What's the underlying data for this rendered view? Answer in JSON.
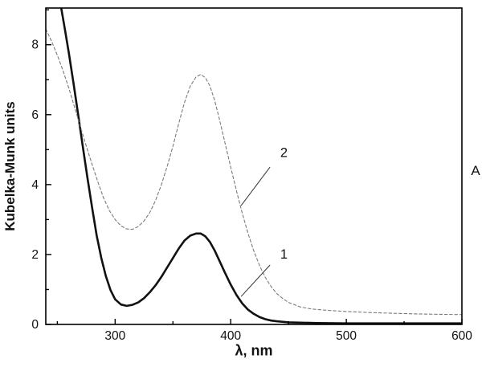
{
  "figure": {
    "background": "#ffffff",
    "axis_color": "#000000"
  },
  "chart_data": {
    "type": "line",
    "title": "",
    "xlabel": "λ, nm",
    "ylabel": "Kubelka-Munk units",
    "ylabel_right": "A",
    "xlim": [
      240,
      600
    ],
    "ylim": [
      0,
      9.05
    ],
    "xticks": [
      300,
      400,
      500,
      600
    ],
    "xticks_minor": [
      250,
      350,
      450,
      550
    ],
    "yticks": [
      0,
      2,
      4,
      6,
      8
    ],
    "yticks_minor": [
      1,
      3,
      5,
      7,
      9
    ],
    "grid": false,
    "legend_position": "none",
    "series": [
      {
        "name": "1",
        "line_style": "solid",
        "color": "#111111",
        "width": 2.6,
        "x": [
          252,
          256,
          260,
          264,
          268,
          272,
          276,
          280,
          284,
          288,
          292,
          296,
          300,
          305,
          310,
          315,
          320,
          325,
          330,
          335,
          340,
          345,
          350,
          355,
          360,
          365,
          370,
          374,
          378,
          382,
          386,
          390,
          395,
          400,
          405,
          410,
          415,
          420,
          425,
          430,
          435,
          440,
          450,
          460,
          475,
          500,
          525,
          550,
          575,
          600
        ],
        "y": [
          9.3,
          8.55,
          7.75,
          6.9,
          6.0,
          5.1,
          4.2,
          3.35,
          2.55,
          1.9,
          1.38,
          0.98,
          0.72,
          0.57,
          0.53,
          0.56,
          0.63,
          0.75,
          0.92,
          1.12,
          1.36,
          1.63,
          1.9,
          2.17,
          2.4,
          2.54,
          2.6,
          2.6,
          2.52,
          2.36,
          2.12,
          1.84,
          1.48,
          1.14,
          0.84,
          0.6,
          0.42,
          0.3,
          0.21,
          0.15,
          0.11,
          0.09,
          0.06,
          0.05,
          0.04,
          0.03,
          0.03,
          0.03,
          0.03,
          0.03
        ]
      },
      {
        "name": "2",
        "line_style": "dashed",
        "color": "#7a7a7a",
        "width": 1.1,
        "x": [
          240,
          245,
          250,
          255,
          260,
          265,
          270,
          275,
          280,
          285,
          290,
          295,
          300,
          305,
          310,
          315,
          320,
          325,
          330,
          335,
          340,
          345,
          350,
          355,
          360,
          365,
          370,
          374,
          378,
          382,
          386,
          390,
          395,
          400,
          405,
          410,
          415,
          420,
          425,
          430,
          435,
          440,
          445,
          450,
          460,
          470,
          485,
          500,
          520,
          540,
          560,
          580,
          600
        ],
        "y": [
          8.45,
          8.1,
          7.7,
          7.25,
          6.75,
          6.2,
          5.65,
          5.1,
          4.58,
          4.08,
          3.62,
          3.26,
          3.0,
          2.82,
          2.73,
          2.72,
          2.8,
          2.96,
          3.2,
          3.55,
          4.0,
          4.52,
          5.1,
          5.75,
          6.35,
          6.82,
          7.08,
          7.15,
          7.06,
          6.82,
          6.42,
          5.9,
          5.2,
          4.5,
          3.82,
          3.18,
          2.6,
          2.1,
          1.68,
          1.34,
          1.08,
          0.88,
          0.74,
          0.63,
          0.5,
          0.44,
          0.4,
          0.37,
          0.34,
          0.32,
          0.3,
          0.29,
          0.28
        ]
      }
    ],
    "annotations": [
      {
        "label": "2",
        "label_x": 446,
        "label_y": 4.9,
        "leader": [
          434,
          4.5,
          409,
          3.4
        ]
      },
      {
        "label": "1",
        "label_x": 446,
        "label_y": 2.0,
        "leader": [
          434,
          1.7,
          409,
          0.8
        ]
      }
    ]
  }
}
